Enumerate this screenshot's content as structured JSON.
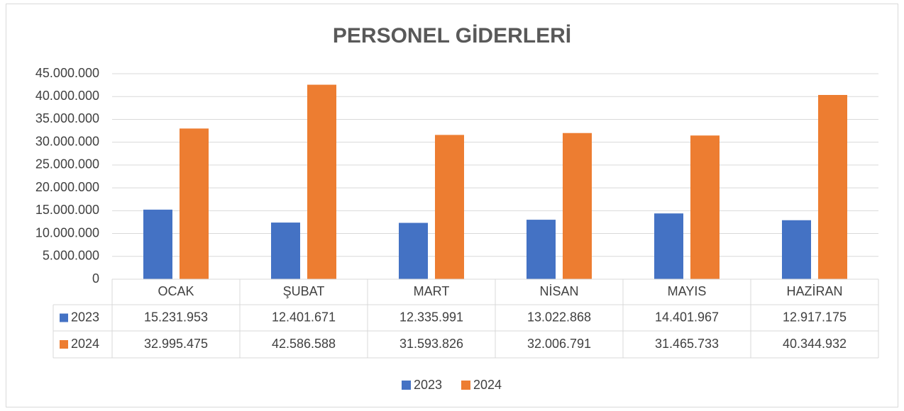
{
  "chart_data": {
    "type": "bar",
    "title": "PERSONEL GİDERLERİ",
    "categories": [
      "OCAK",
      "ŞUBAT",
      "MART",
      "NİSAN",
      "MAYIS",
      "HAZİRAN"
    ],
    "series": [
      {
        "name": "2023",
        "color": "#4472c4",
        "values": [
          15231953,
          12401671,
          12335991,
          13022868,
          14401967,
          12917175
        ],
        "value_labels": [
          "15.231.953",
          "12.401.671",
          "12.335.991",
          "13.022.868",
          "14.401.967",
          "12.917.175"
        ]
      },
      {
        "name": "2024",
        "color": "#ed7d31",
        "values": [
          32995475,
          42586588,
          31593826,
          32006791,
          31465733,
          40344932
        ],
        "value_labels": [
          "32.995.475",
          "42.586.588",
          "31.593.826",
          "32.006.791",
          "31.465.733",
          "40.344.932"
        ]
      }
    ],
    "ylim": [
      0,
      45000000
    ],
    "yticks": [
      0,
      {
        "value": 5000000,
        "label": "5.000.000"
      },
      {
        "value": 10000000,
        "label": "10.000.000"
      },
      {
        "value": 15000000,
        "label": "15.000.000"
      },
      {
        "value": 20000000,
        "label": "20.000.000"
      },
      {
        "value": 25000000,
        "label": "25.000.000"
      },
      {
        "value": 30000000,
        "label": "30.000.000"
      },
      {
        "value": 35000000,
        "label": "35.000.000"
      },
      {
        "value": 40000000,
        "label": "40.000.000"
      },
      {
        "value": 45000000,
        "label": "45.000.000"
      }
    ],
    "grid": true,
    "legend": "bottom"
  }
}
